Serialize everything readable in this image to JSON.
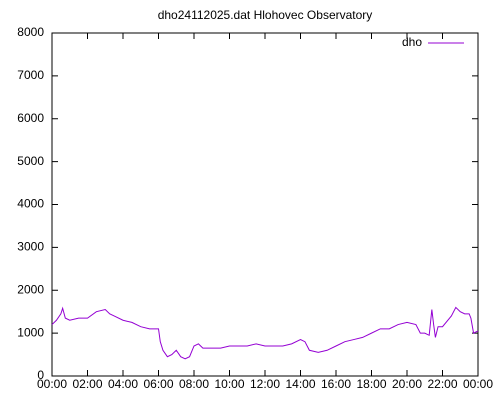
{
  "chart_data": {
    "type": "line",
    "title": "dho24112025.dat Hlohovec Observatory",
    "x": [
      0,
      0.25,
      0.5,
      0.6,
      0.75,
      1,
      1.5,
      2,
      2.5,
      3,
      3.25,
      3.5,
      4,
      4.5,
      5,
      5.5,
      6,
      6.1,
      6.25,
      6.5,
      6.75,
      7,
      7.25,
      7.5,
      7.75,
      8,
      8.25,
      8.5,
      9,
      9.5,
      10,
      10.5,
      11,
      11.5,
      12,
      12.5,
      13,
      13.5,
      14,
      14.25,
      14.5,
      15,
      15.5,
      16,
      16.5,
      17,
      17.5,
      18,
      18.5,
      19,
      19.5,
      20,
      20.5,
      20.75,
      21,
      21.25,
      21.4,
      21.5,
      21.6,
      21.75,
      22,
      22.5,
      22.75,
      23,
      23.25,
      23.5,
      23.6,
      23.75,
      24
    ],
    "series": [
      {
        "name": "dho",
        "color": "#9400d3",
        "values": [
          1200,
          1300,
          1450,
          1580,
          1350,
          1300,
          1350,
          1350,
          1500,
          1550,
          1450,
          1400,
          1300,
          1250,
          1150,
          1100,
          1100,
          800,
          600,
          450,
          500,
          600,
          450,
          400,
          450,
          700,
          750,
          650,
          650,
          650,
          700,
          700,
          700,
          750,
          700,
          700,
          700,
          750,
          850,
          800,
          600,
          550,
          600,
          700,
          800,
          850,
          900,
          1000,
          1100,
          1100,
          1200,
          1250,
          1200,
          1000,
          1000,
          950,
          1550,
          1200,
          900,
          1150,
          1150,
          1400,
          1600,
          1500,
          1450,
          1450,
          1350,
          1000,
          1050
        ]
      }
    ],
    "xlim": [
      0,
      24
    ],
    "xticks": [
      {
        "value": 0,
        "label": "00:00"
      },
      {
        "value": 2,
        "label": "02:00"
      },
      {
        "value": 4,
        "label": "04:00"
      },
      {
        "value": 6,
        "label": "06:00"
      },
      {
        "value": 8,
        "label": "08:00"
      },
      {
        "value": 10,
        "label": "10:00"
      },
      {
        "value": 12,
        "label": "12:00"
      },
      {
        "value": 14,
        "label": "14:00"
      },
      {
        "value": 16,
        "label": "16:00"
      },
      {
        "value": 18,
        "label": "18:00"
      },
      {
        "value": 20,
        "label": "20:00"
      },
      {
        "value": 22,
        "label": "22:00"
      },
      {
        "value": 24,
        "label": "00:00"
      }
    ],
    "ylim": [
      0,
      8000
    ],
    "yticks": [
      0,
      1000,
      2000,
      3000,
      4000,
      5000,
      6000,
      7000,
      8000
    ],
    "grid": false,
    "legend": "top-right"
  }
}
